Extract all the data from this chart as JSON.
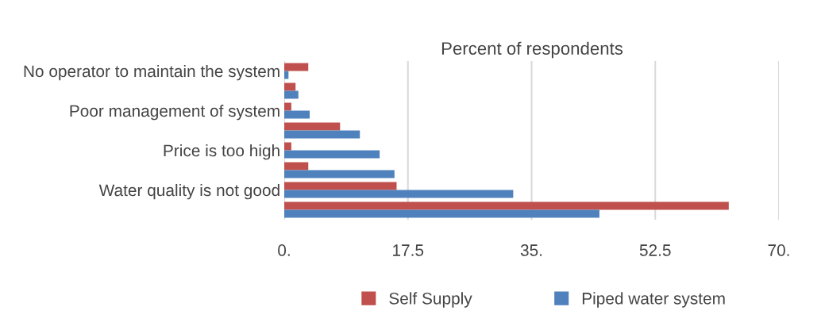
{
  "chart_data": {
    "type": "bar",
    "orientation": "horizontal",
    "title": "Percent of respondents",
    "categories": [
      "No operator to maintain the system",
      null,
      "Poor management of system",
      null,
      "Price is too high",
      null,
      "Water quality is not good",
      null
    ],
    "series": [
      {
        "name": "Self Supply",
        "color": "#c0504d",
        "values": [
          3.4,
          1.6,
          1.0,
          7.9,
          1.0,
          3.4,
          15.9,
          62.9
        ]
      },
      {
        "name": "Piped water system",
        "color": "#4f81bd",
        "values": [
          0.6,
          2.0,
          3.6,
          10.7,
          13.5,
          15.6,
          32.4,
          44.6
        ]
      }
    ],
    "xlim": [
      0,
      70
    ],
    "xticks": [
      {
        "value": 0,
        "label": "0."
      },
      17.5,
      {
        "value": 35,
        "label": "35."
      },
      52.5,
      {
        "value": 70,
        "label": "70."
      }
    ],
    "grid": "x",
    "legend": "bottom"
  }
}
